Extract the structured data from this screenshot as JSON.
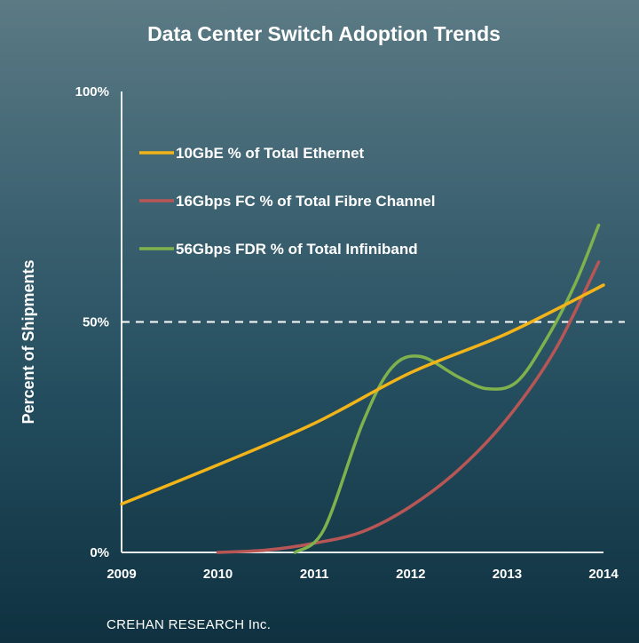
{
  "chart_data": {
    "type": "line",
    "title": "Data Center Switch Adoption Trends",
    "xlabel": "",
    "ylabel": "Percent of Shipments",
    "x": [
      "2009",
      "2010",
      "2011",
      "2012",
      "2013",
      "2014"
    ],
    "xlim": [
      2009,
      2014
    ],
    "ylim": [
      0,
      100
    ],
    "yticks": [
      "100%",
      "50%",
      "0%"
    ],
    "yticks_values": [
      100,
      50,
      0
    ],
    "reference_line": 50,
    "legend_position": "top-left",
    "source": "CREHAN RESEARCH Inc.",
    "series": [
      {
        "name": "10GbE % of Total Ethernet",
        "color": "#f2b418",
        "points": [
          [
            2009,
            10.5
          ],
          [
            2010,
            19
          ],
          [
            2011,
            28
          ],
          [
            2012,
            39
          ],
          [
            2013,
            47.5
          ],
          [
            2014,
            58
          ]
        ]
      },
      {
        "name": "16Gbps FC % of Total Fibre Channel",
        "color": "#b85656",
        "points": [
          [
            2010,
            0
          ],
          [
            2010.5,
            0.5
          ],
          [
            2011,
            2
          ],
          [
            2011.5,
            4.5
          ],
          [
            2012,
            10
          ],
          [
            2012.5,
            18
          ],
          [
            2013,
            29
          ],
          [
            2013.5,
            44
          ],
          [
            2013.95,
            63
          ]
        ]
      },
      {
        "name": "56Gbps FDR % of Total Infiniband",
        "color": "#7fb24d",
        "points": [
          [
            2010.8,
            0
          ],
          [
            2011.1,
            5
          ],
          [
            2011.5,
            28
          ],
          [
            2011.8,
            40
          ],
          [
            2012.1,
            42.5
          ],
          [
            2012.5,
            38
          ],
          [
            2012.8,
            35.5
          ],
          [
            2013.1,
            37
          ],
          [
            2013.4,
            46
          ],
          [
            2013.7,
            58
          ],
          [
            2013.95,
            71
          ]
        ]
      }
    ]
  }
}
